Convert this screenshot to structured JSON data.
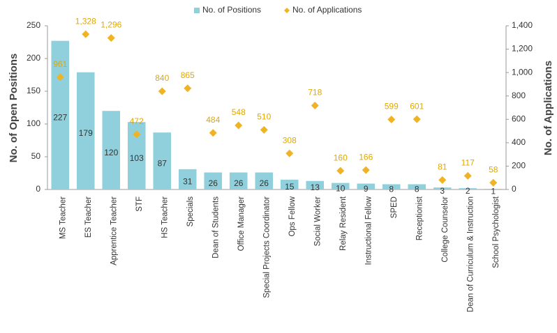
{
  "chart_data": {
    "type": "bar_line_dual",
    "categories": [
      "MS Teacher",
      "ES Teacher",
      "Apprentice Teacher",
      "STF",
      "HS Teacher",
      "Specials",
      "Dean of Students",
      "Office Manager",
      "Special Projects Coordinator",
      "Ops Fellow",
      "Social Worker",
      "Relay Resident",
      "Instructional Fellow",
      "SPED",
      "Receptionist",
      "College Counselor",
      "Dean of Curriculum & Instruction",
      "School Psychologist"
    ],
    "series": [
      {
        "name": "No. of Positions",
        "color": "#8fd0dc",
        "marker": "square",
        "axis": "y",
        "values": [
          227,
          179,
          120,
          103,
          87,
          31,
          26,
          26,
          26,
          15,
          13,
          10,
          9,
          8,
          8,
          3,
          2,
          1
        ]
      },
      {
        "name": "No. of Applications",
        "color": "#f0b323",
        "marker": "diamond",
        "axis": "y2",
        "values": [
          961,
          1328,
          1296,
          472,
          840,
          865,
          484,
          548,
          510,
          308,
          718,
          160,
          166,
          599,
          601,
          81,
          117,
          58
        ],
        "value_labels": [
          "961",
          "1,328",
          "1,296",
          "472",
          "840",
          "865",
          "484",
          "548",
          "510",
          "308",
          "718",
          "160",
          "166",
          "599",
          "601",
          "81",
          "117",
          "58"
        ]
      }
    ],
    "ylabel": "No. of Open Positions",
    "y2label": "No. of Applications",
    "ylim": [
      0,
      250
    ],
    "yticks": [
      0,
      50,
      100,
      150,
      200,
      250
    ],
    "y2lim": [
      0,
      1400
    ],
    "y2ticks": [
      0,
      200,
      400,
      600,
      800,
      {
        "value": 1000,
        "label": "1,000"
      },
      {
        "value": 1200,
        "label": "1,200"
      },
      {
        "value": 1400,
        "label": "1,400"
      }
    ],
    "legend": "top",
    "grid": false
  }
}
